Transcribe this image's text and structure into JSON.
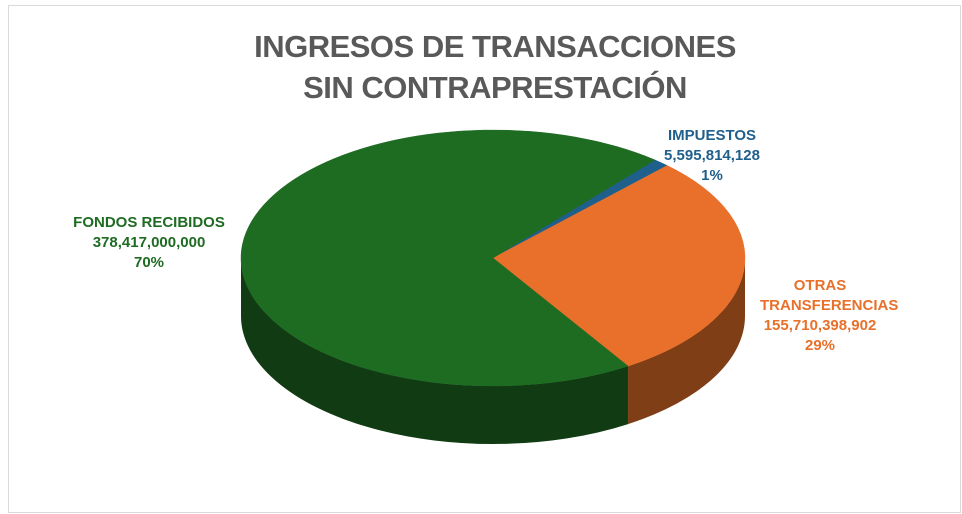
{
  "chart_data": {
    "type": "pie",
    "title": "INGRESOS DE TRANSACCIONES SIN CONTRAPRESTACIÓN",
    "categories": [
      "IMPUESTOS",
      "OTRAS TRANSFERENCIAS",
      "FONDOS RECIBIDOS"
    ],
    "values": [
      5595814128,
      155710398902,
      378417000000
    ],
    "value_labels": [
      "5,595,814,128",
      "155,710,398,902",
      "378,417,000,000"
    ],
    "percent_labels": [
      "1%",
      "29%",
      "70%"
    ],
    "colors": [
      "#1f5f8b",
      "#e8702a",
      "#1e6b22"
    ]
  }
}
